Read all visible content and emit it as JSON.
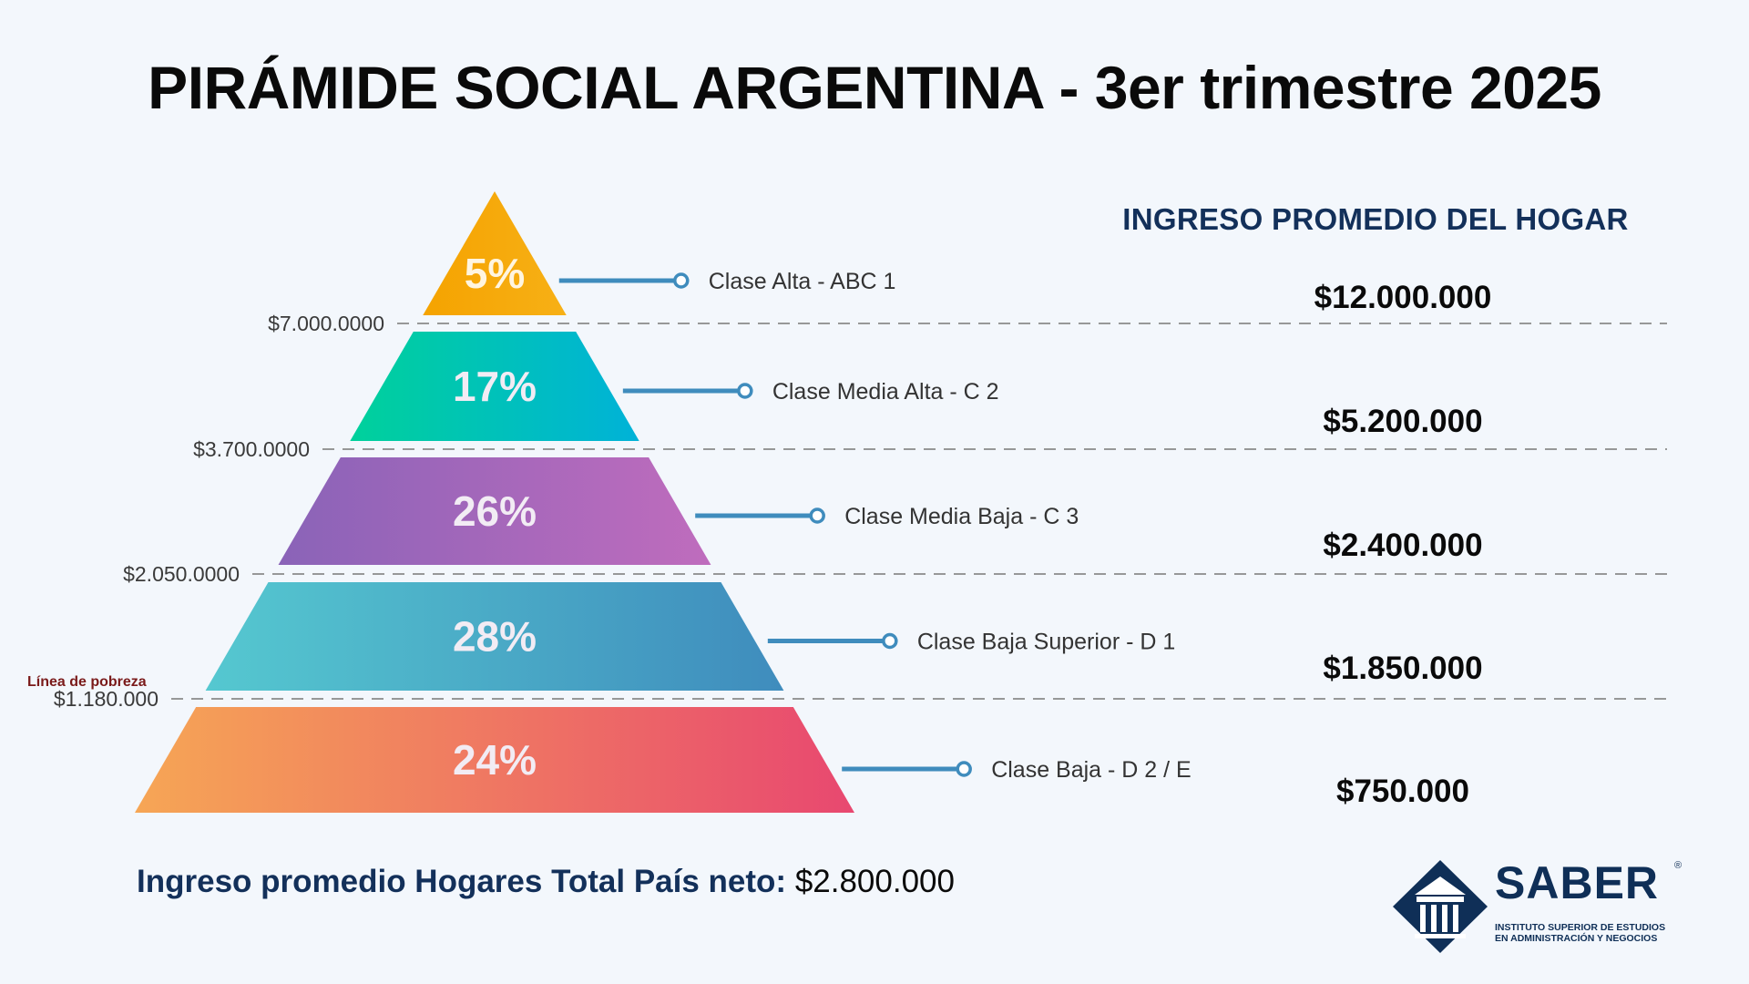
{
  "title": "PIRÁMIDE SOCIAL ARGENTINA - 3er trimestre 2025",
  "income_header": "INGRESO PROMEDIO DEL HOGAR",
  "footer": {
    "label": "Ingreso promedio Hogares Total País neto:",
    "value": "$2.800.000"
  },
  "logo": {
    "name": "SABER",
    "registered": "®",
    "subtitle_line1": "INSTITUTO SUPERIOR DE ESTUDIOS",
    "subtitle_line2": "EN ADMINISTRACIÓN Y NEGOCIOS",
    "icon": "greek-temple-diamond-icon"
  },
  "chart_data": {
    "type": "pyramid",
    "title": "PIRÁMIDE SOCIAL ARGENTINA - 3er trimestre 2025",
    "levels": [
      {
        "pct": 5,
        "pct_label": "5%",
        "class": "Clase Alta - ABC 1",
        "income": "$12.000.000",
        "income_value": 12000000,
        "colors": [
          "#f5a300",
          "#f7b016"
        ]
      },
      {
        "pct": 17,
        "pct_label": "17%",
        "class": "Clase Media Alta - C 2",
        "income": "$5.200.000",
        "income_value": 5200000,
        "colors": [
          "#00d19b",
          "#00b2d8"
        ]
      },
      {
        "pct": 26,
        "pct_label": "26%",
        "class": "Clase Media Baja - C 3",
        "income": "$2.400.000",
        "income_value": 2400000,
        "colors": [
          "#8a63b8",
          "#bf6cbd"
        ]
      },
      {
        "pct": 28,
        "pct_label": "28%",
        "class": "Clase Baja Superior - D 1",
        "income": "$1.850.000",
        "income_value": 1850000,
        "colors": [
          "#55c8d0",
          "#3f8cbd"
        ]
      },
      {
        "pct": 24,
        "pct_label": "24%",
        "class": "Clase Baja - D 2 / E",
        "income": "$750.000",
        "income_value": 750000,
        "colors": [
          "#f6a655",
          "#e84870"
        ]
      }
    ],
    "thresholds": [
      {
        "label": "$7.000.0000"
      },
      {
        "label": "$3.700.0000"
      },
      {
        "label": "$2.050.0000"
      },
      {
        "label": "$1.180.000",
        "note": "Línea de pobreza"
      }
    ],
    "colors": {
      "connector": "#3f8cbd",
      "dashed_line": "#8a8a8a",
      "header": "#13305a",
      "brand": "#0f2f57"
    }
  }
}
